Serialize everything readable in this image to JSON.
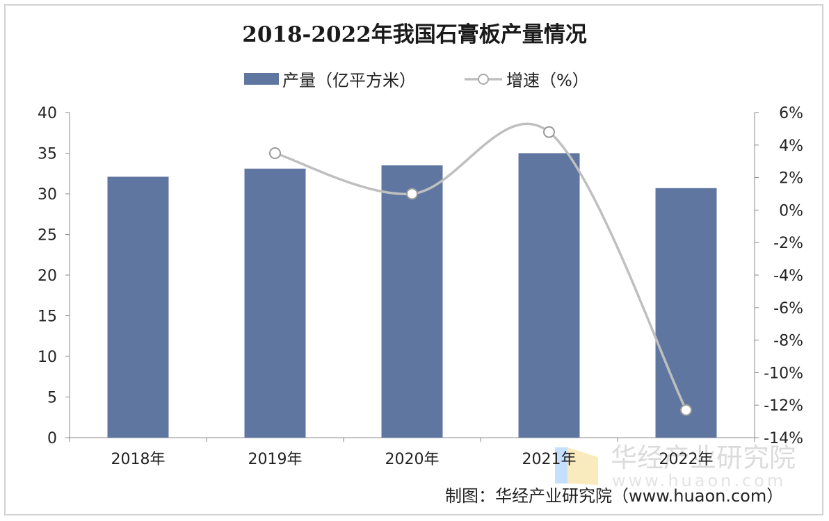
{
  "chart_data": {
    "type": "bar",
    "title": "2018-2022年我国石膏板产量情况",
    "categories": [
      "2018年",
      "2019年",
      "2020年",
      "2021年",
      "2022年"
    ],
    "series": [
      {
        "name": "产量（亿平方米）",
        "type": "bar",
        "axis": "left",
        "color": "#5f77a0",
        "values": [
          32.1,
          33.1,
          33.5,
          35.0,
          30.7
        ]
      },
      {
        "name": "增速（%）",
        "type": "line",
        "axis": "right",
        "color": "#bfbfbf",
        "values": [
          null,
          3.5,
          1.0,
          4.8,
          -12.3
        ]
      }
    ],
    "ylim": [
      0,
      40
    ],
    "yticks": [
      "0",
      "5",
      "10",
      "15",
      "20",
      "25",
      "30",
      "35",
      "40"
    ],
    "y2lim": [
      -14,
      6
    ],
    "y2ticks": [
      "-14%",
      "-12%",
      "-10%",
      "-8%",
      "-6%",
      "-4%",
      "-2%",
      "0%",
      "2%",
      "4%",
      "6%"
    ],
    "legend_position": "top-center",
    "grid": false
  },
  "watermark": {
    "name": "华经产业研究院",
    "url": "www.huaon.com"
  },
  "credit": "制图：华经产业研究院（www.huaon.com）"
}
